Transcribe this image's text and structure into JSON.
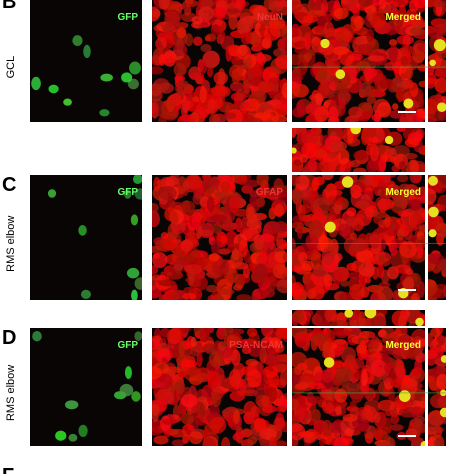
{
  "rows": [
    {
      "letter": "B",
      "region": "GCL",
      "panels": [
        "GFP",
        "NeuN",
        "Merged"
      ]
    },
    {
      "letter": "C",
      "region": "RMS elbow",
      "panels": [
        "GFP",
        "GFAP",
        "Merged"
      ]
    },
    {
      "letter": "D",
      "region": "RMS elbow",
      "panels": [
        "GFP",
        "PSA-NCAM",
        "Merged"
      ]
    }
  ],
  "footer_letter": "F"
}
